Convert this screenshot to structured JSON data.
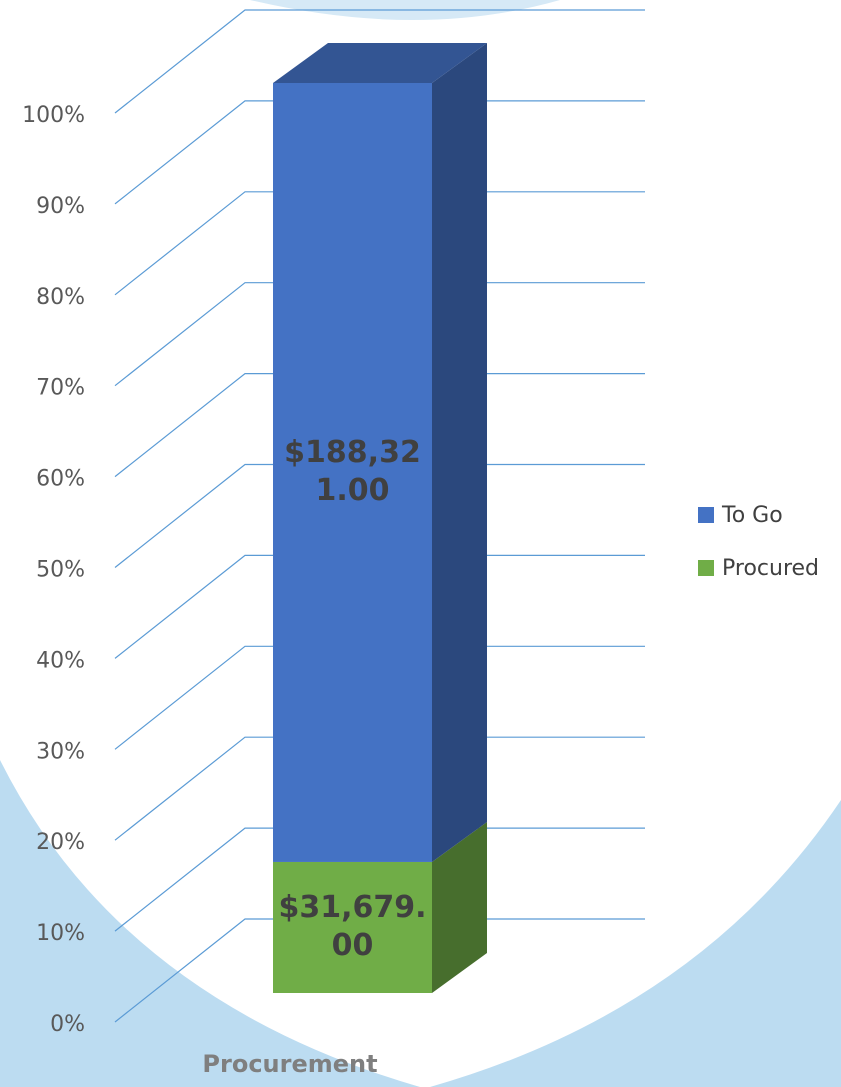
{
  "chart_data": {
    "type": "bar3d",
    "stacking": "percent",
    "categories": [
      "Procurement"
    ],
    "series": [
      {
        "name": "Procured",
        "color": "#70ad47",
        "values": [
          31679
        ],
        "value_labels": [
          "$31,679.00"
        ]
      },
      {
        "name": "To Go",
        "color": "#4472c4",
        "values": [
          188321
        ],
        "value_labels": [
          "$188,321.00"
        ]
      }
    ],
    "ylim": [
      0,
      100
    ],
    "yticks": [
      {
        "value": 0,
        "label": "0%"
      },
      {
        "value": 10,
        "label": "10%"
      },
      {
        "value": 20,
        "label": "20%"
      },
      {
        "value": 30,
        "label": "30%"
      },
      {
        "value": 40,
        "label": "40%"
      },
      {
        "value": 50,
        "label": "50%"
      },
      {
        "value": 60,
        "label": "60%"
      },
      {
        "value": 70,
        "label": "70%"
      },
      {
        "value": 80,
        "label": "80%"
      },
      {
        "value": 90,
        "label": "90%"
      },
      {
        "value": 100,
        "label": "100%"
      }
    ],
    "grid": true,
    "legend": "right"
  }
}
